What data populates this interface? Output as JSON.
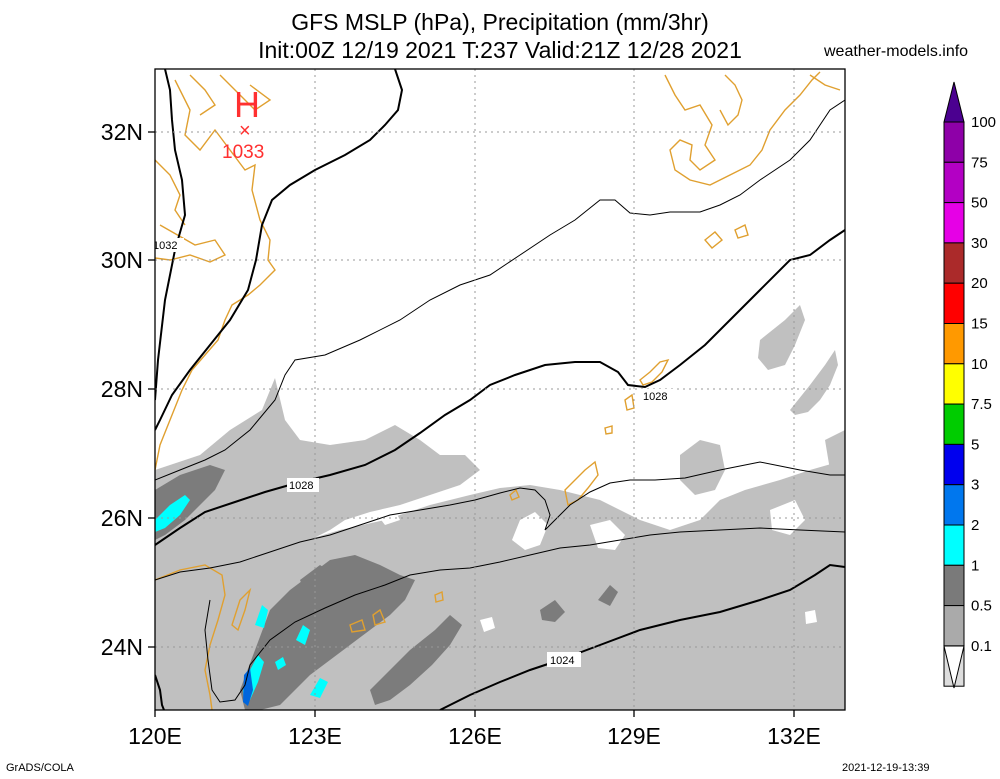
{
  "header": {
    "title_line1": "GFS MSLP (hPa), Precipitation (mm/3hr)",
    "title_line2": "Init:00Z 12/19 2021 T:237 Valid:21Z 12/28 2021",
    "site": "weather-models.info"
  },
  "map": {
    "lat_labels": [
      "32N",
      "30N",
      "28N",
      "26N",
      "24N"
    ],
    "lon_labels": [
      "120E",
      "123E",
      "126E",
      "129E",
      "132E"
    ],
    "isobar_labels": [
      "1032",
      "1028",
      "1028",
      "1024"
    ],
    "high_pressure": {
      "symbol": "H",
      "marker": "×",
      "value": "1033"
    }
  },
  "colorbar": {
    "labels": [
      "100",
      "75",
      "50",
      "30",
      "20",
      "15",
      "10",
      "7.5",
      "5",
      "3",
      "2",
      "1",
      "0.5",
      "0.1"
    ],
    "colors": [
      "#8e00a8",
      "#b300c4",
      "#e600e6",
      "#ab2a2a",
      "#ff0000",
      "#ff9900",
      "#ffff00",
      "#00cc00",
      "#0000ee",
      "#0077ee",
      "#00ffff",
      "#7a7a7a",
      "#aaaaaa",
      "#dddddd"
    ],
    "bottom_color": "#ffffff",
    "top_color": "#4b0090"
  },
  "footer": {
    "left": "GrADS/COLA",
    "right": "2021-12-19-13:39"
  },
  "colors": {
    "coast": "#e0a030",
    "high": "#ff3030",
    "light_precip": "#c0c0c0",
    "mid_precip": "#7c7c7c",
    "cyan_precip": "#00ffff",
    "blue_precip": "#0066dd"
  }
}
